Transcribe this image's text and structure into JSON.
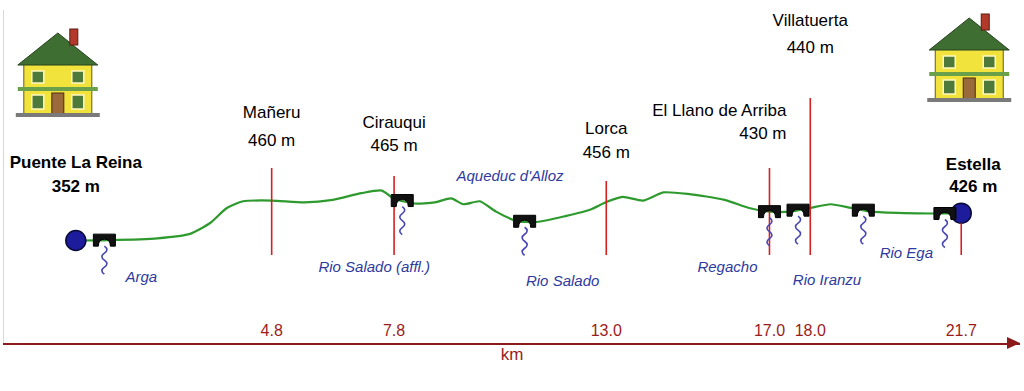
{
  "chart_data": {
    "type": "line",
    "x_label": "km",
    "x": [
      0,
      0.8,
      2.0,
      2.8,
      3.3,
      3.7,
      4.1,
      4.8,
      5.6,
      6.3,
      7.0,
      7.5,
      7.8,
      8.3,
      8.8,
      9.2,
      9.5,
      9.9,
      10.3,
      10.8,
      11.3,
      12.0,
      12.6,
      13.0,
      13.4,
      13.9,
      14.4,
      15.0,
      15.9,
      16.5,
      17.0,
      17.5,
      18.0,
      18.5,
      19.0,
      19.5,
      20.3,
      21.0,
      21.7
    ],
    "values": [
      352,
      353,
      358,
      370,
      400,
      440,
      458,
      460,
      455,
      462,
      480,
      487,
      465,
      452,
      455,
      466,
      450,
      458,
      430,
      405,
      402,
      418,
      435,
      456,
      470,
      460,
      482,
      478,
      462,
      440,
      430,
      430,
      440,
      450,
      440,
      430,
      426,
      425,
      426
    ],
    "color": "#2e9a2e",
    "line_style": "solid",
    "grid": false,
    "tick_labels": "x",
    "xlim": [
      -1.76,
      23.14
    ],
    "xticks": [
      4.8,
      7.8,
      {
        "value": 13,
        "label": "13.0"
      },
      {
        "value": 17,
        "label": "17.0"
      },
      {
        "value": 18,
        "label": "18.0"
      },
      21.7
    ],
    "ylim": [
      75,
      975
    ],
    "yticks": [],
    "places": [
      {
        "name": "Puente La Reina",
        "km": 0,
        "elevation": 352,
        "elevation_label": "352 m"
      },
      {
        "name": "Mañeru",
        "km": 4.8,
        "elevation": 460,
        "elevation_label": "460 m"
      },
      {
        "name": "Cirauqui",
        "km": 7.8,
        "elevation": 465,
        "elevation_label": "465 m"
      },
      {
        "name": "Lorca",
        "km": 13,
        "elevation": 456,
        "elevation_label": "456 m"
      },
      {
        "name": "El Llano de Arriba",
        "km": 17,
        "elevation": 430,
        "elevation_label": "430 m"
      },
      {
        "name": "Villatuerta",
        "km": 18,
        "elevation": 440,
        "elevation_label": "440 m"
      },
      {
        "name": "Estella",
        "km": 21.7,
        "elevation": 426,
        "elevation_label": "426 m"
      }
    ],
    "rivers": [
      {
        "name": "Arga",
        "km": 0.7,
        "elevation": 353
      },
      {
        "name": "Rio Salado (affl.)",
        "km": 8.0,
        "elevation": 460
      },
      {
        "name": "Rio Salado",
        "km": 11.0,
        "elevation": 404
      },
      {
        "name": "Regacho",
        "km": 17.0,
        "elevation": 430
      },
      {
        "name": "Rio Iranzu",
        "km": 17.7,
        "elevation": 434
      },
      {
        "name": "Rio Ega",
        "km": 19.3,
        "elevation": 434
      },
      {
        "name": null,
        "km": 21.3,
        "elevation": 425
      }
    ],
    "annotations": [
      "Aqueduc d'Alloz"
    ]
  }
}
